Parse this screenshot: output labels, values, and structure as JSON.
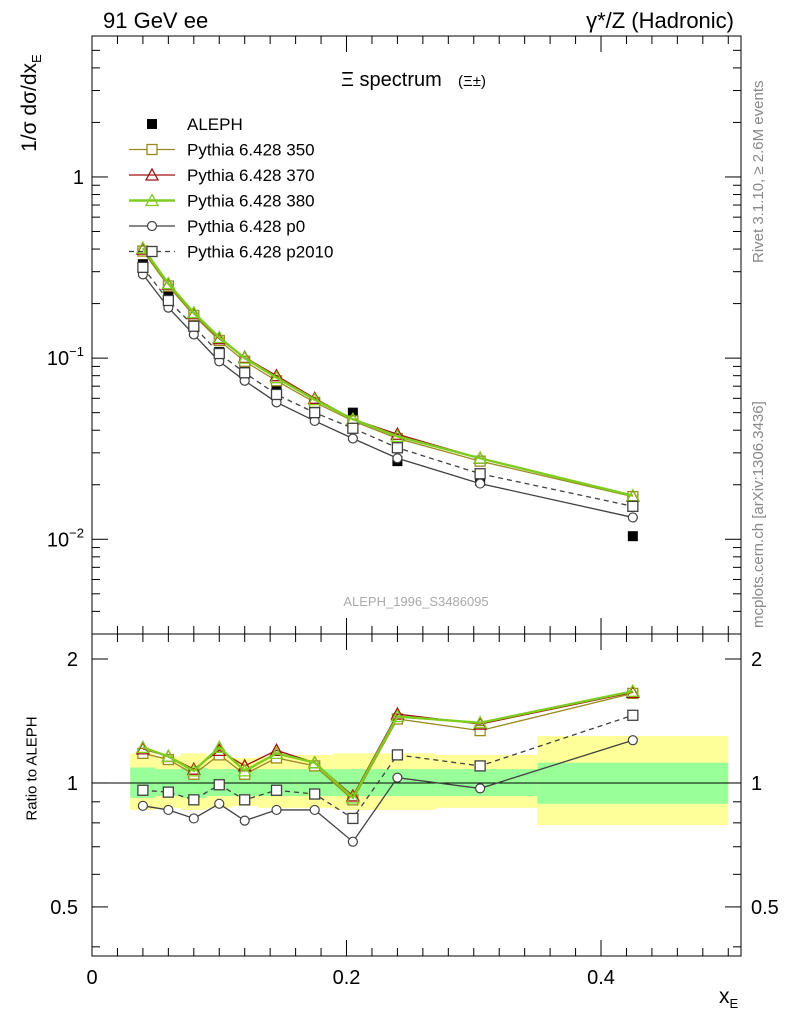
{
  "header": {
    "left": "91 GeV ee",
    "right": "γ*/Z (Hadronic)"
  },
  "side_labels": {
    "rivet": "Rivet 3.1.10, ≥ 2.6M events",
    "mcplots": "mcplots.cern.ch [arXiv:1306.3436]"
  },
  "watermark": "ALEPH_1996_S3486095",
  "chart_data": [
    {
      "type": "scatter",
      "title": "Ξ spectrum",
      "title_suffix": "(Ξ±)",
      "ylabel": "1/σ dσ/dx_E",
      "xlabel": "x_E",
      "xlim": [
        0,
        0.51
      ],
      "ylim": [
        0.003,
        6
      ],
      "yscale": "log",
      "ytick_labels": [
        "10⁻²",
        "10⁻¹",
        "1"
      ],
      "legend_position": "top-left",
      "x": [
        0.04,
        0.06,
        0.08,
        0.1,
        0.12,
        0.145,
        0.175,
        0.205,
        0.24,
        0.305,
        0.425
      ],
      "series": [
        {
          "name": "ALEPH",
          "color": "#000000",
          "marker": "filled-square",
          "line": "none",
          "values": [
            0.33,
            0.22,
            0.165,
            0.108,
            0.092,
            0.066,
            0.053,
            0.05,
            0.027,
            0.021,
            0.0104
          ]
        },
        {
          "name": "Pythia 6.428 350",
          "color": "#9a8a1e",
          "marker": "open-square",
          "line": "solid",
          "values": [
            0.39,
            0.25,
            0.172,
            0.125,
            0.096,
            0.075,
            0.057,
            0.045,
            0.036,
            0.027,
            0.0172
          ]
        },
        {
          "name": "Pythia 6.428 370",
          "color": "#a01010",
          "marker": "open-triangle",
          "line": "solid",
          "values": [
            0.4,
            0.256,
            0.176,
            0.128,
            0.101,
            0.08,
            0.06,
            0.046,
            0.038,
            0.028,
            0.0173
          ]
        },
        {
          "name": "Pythia 6.428 380",
          "color": "#7dcc1e",
          "marker": "open-triangle",
          "line": "solid-thick",
          "values": [
            0.405,
            0.258,
            0.178,
            0.13,
            0.1,
            0.078,
            0.059,
            0.046,
            0.037,
            0.028,
            0.0174
          ]
        },
        {
          "name": "Pythia 6.428 p0",
          "color": "#404040",
          "marker": "open-circle",
          "line": "solid",
          "values": [
            0.29,
            0.19,
            0.135,
            0.096,
            0.075,
            0.057,
            0.045,
            0.036,
            0.028,
            0.0203,
            0.0132
          ]
        },
        {
          "name": "Pythia 6.428 p2010",
          "color": "#404040",
          "marker": "open-square",
          "line": "dashed",
          "values": [
            0.317,
            0.208,
            0.15,
            0.106,
            0.083,
            0.063,
            0.05,
            0.041,
            0.032,
            0.023,
            0.0152
          ]
        }
      ]
    },
    {
      "type": "line",
      "ylabel": "Ratio to ALEPH",
      "xlabel": "x_E",
      "xlim": [
        0,
        0.51
      ],
      "ylim": [
        0.38,
        2.3
      ],
      "yscale": "log",
      "ytick_labels": [
        "0.5",
        "1",
        "2"
      ],
      "xtick_labels": [
        "0",
        "0.2",
        "0.4"
      ],
      "reference_line": 1,
      "x": [
        0.04,
        0.06,
        0.08,
        0.1,
        0.12,
        0.145,
        0.175,
        0.205,
        0.24,
        0.305,
        0.425
      ],
      "uncertainty_bands": [
        {
          "x_range": [
            0.03,
            0.05
          ],
          "green": [
            0.92,
            1.09
          ],
          "yellow": [
            0.86,
            1.18
          ]
        },
        {
          "x_range": [
            0.05,
            0.07
          ],
          "green": [
            0.93,
            1.08
          ],
          "yellow": [
            0.87,
            1.16
          ]
        },
        {
          "x_range": [
            0.07,
            0.09
          ],
          "green": [
            0.92,
            1.09
          ],
          "yellow": [
            0.86,
            1.18
          ]
        },
        {
          "x_range": [
            0.09,
            0.11
          ],
          "green": [
            0.93,
            1.08
          ],
          "yellow": [
            0.87,
            1.16
          ]
        },
        {
          "x_range": [
            0.11,
            0.13
          ],
          "green": [
            0.93,
            1.08
          ],
          "yellow": [
            0.88,
            1.15
          ]
        },
        {
          "x_range": [
            0.13,
            0.16
          ],
          "green": [
            0.93,
            1.08
          ],
          "yellow": [
            0.87,
            1.16
          ]
        },
        {
          "x_range": [
            0.16,
            0.19
          ],
          "green": [
            0.93,
            1.08
          ],
          "yellow": [
            0.87,
            1.17
          ]
        },
        {
          "x_range": [
            0.19,
            0.22
          ],
          "green": [
            0.93,
            1.08
          ],
          "yellow": [
            0.86,
            1.18
          ]
        },
        {
          "x_range": [
            0.22,
            0.27
          ],
          "green": [
            0.93,
            1.08
          ],
          "yellow": [
            0.86,
            1.18
          ]
        },
        {
          "x_range": [
            0.27,
            0.35
          ],
          "green": [
            0.93,
            1.08
          ],
          "yellow": [
            0.87,
            1.17
          ]
        },
        {
          "x_range": [
            0.35,
            0.5
          ],
          "green": [
            0.89,
            1.12
          ],
          "yellow": [
            0.79,
            1.3
          ]
        }
      ],
      "series": [
        {
          "name": "Pythia 6.428 350",
          "color": "#9a8a1e",
          "marker": "open-square",
          "line": "solid",
          "values": [
            1.18,
            1.14,
            1.05,
            1.17,
            1.05,
            1.15,
            1.1,
            0.91,
            1.43,
            1.34,
            1.65
          ]
        },
        {
          "name": "Pythia 6.428 370",
          "color": "#a01010",
          "marker": "open-triangle",
          "line": "solid",
          "values": [
            1.21,
            1.16,
            1.08,
            1.2,
            1.1,
            1.2,
            1.12,
            0.93,
            1.47,
            1.39,
            1.66
          ]
        },
        {
          "name": "Pythia 6.428 380",
          "color": "#7dcc1e",
          "marker": "open-triangle",
          "line": "solid-thick",
          "values": [
            1.22,
            1.16,
            1.07,
            1.22,
            1.07,
            1.18,
            1.12,
            0.92,
            1.45,
            1.4,
            1.67
          ]
        },
        {
          "name": "Pythia 6.428 p0",
          "color": "#404040",
          "marker": "open-circle",
          "line": "solid",
          "values": [
            0.88,
            0.86,
            0.82,
            0.89,
            0.81,
            0.86,
            0.86,
            0.72,
            1.03,
            0.97,
            1.27
          ]
        },
        {
          "name": "Pythia 6.428 p2010",
          "color": "#404040",
          "marker": "open-square",
          "line": "dashed",
          "values": [
            0.96,
            0.95,
            0.91,
            0.99,
            0.91,
            0.96,
            0.94,
            0.82,
            1.17,
            1.1,
            1.46
          ]
        }
      ]
    }
  ]
}
